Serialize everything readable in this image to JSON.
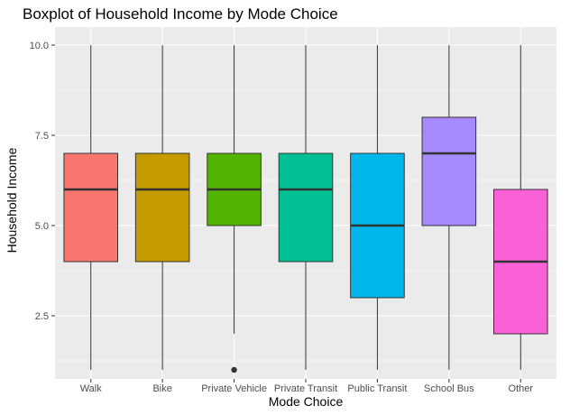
{
  "chart_data": {
    "type": "boxplot",
    "title": "Boxplot of Household Income by Mode Choice",
    "xlabel": "Mode Choice",
    "ylabel": "Household Income",
    "ylim": [
      0.75,
      10.5
    ],
    "yticks": [
      2.5,
      5.0,
      7.5,
      10.0
    ],
    "ytick_labels": [
      "2.5",
      "5.0",
      "7.5",
      "10.0"
    ],
    "grid": true,
    "legend": "none",
    "categories": [
      "Walk",
      "Bike",
      "Private Vehicle",
      "Private Transit",
      "Public Transit",
      "School Bus",
      "Other"
    ],
    "boxes": [
      {
        "category": "Walk",
        "min": 1,
        "q1": 4,
        "median": 6,
        "q3": 7,
        "max": 10,
        "outliers": [],
        "color": "#F8766D"
      },
      {
        "category": "Bike",
        "min": 1,
        "q1": 4,
        "median": 6,
        "q3": 7,
        "max": 10,
        "outliers": [],
        "color": "#C49A00"
      },
      {
        "category": "Private Vehicle",
        "min": 2,
        "q1": 5,
        "median": 6,
        "q3": 7,
        "max": 10,
        "outliers": [
          1
        ],
        "color": "#53B400"
      },
      {
        "category": "Private Transit",
        "min": 1,
        "q1": 4,
        "median": 6,
        "q3": 7,
        "max": 10,
        "outliers": [],
        "color": "#00C094"
      },
      {
        "category": "Public Transit",
        "min": 1,
        "q1": 3,
        "median": 5,
        "q3": 7,
        "max": 10,
        "outliers": [],
        "color": "#00B6EB"
      },
      {
        "category": "School Bus",
        "min": 1,
        "q1": 5,
        "median": 7,
        "q3": 8,
        "max": 10,
        "outliers": [],
        "color": "#A58AFF"
      },
      {
        "category": "Other",
        "min": 1,
        "q1": 2,
        "median": 4,
        "q3": 6,
        "max": 10,
        "outliers": [],
        "color": "#FB61D7"
      }
    ],
    "colors": {
      "panel_background": "#EBEBEB",
      "gridline": "#FFFFFF",
      "box_outline": "#333333"
    }
  }
}
